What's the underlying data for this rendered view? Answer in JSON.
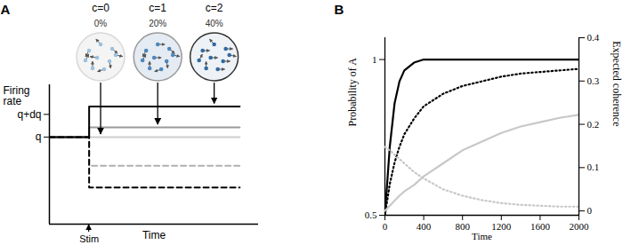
{
  "chart_data": [
    {
      "panel": "A",
      "type": "line",
      "y_label": "Firing rate",
      "x_label": "Time",
      "xlim": [
        0,
        10
      ],
      "xticks": [],
      "ylim": [
        0,
        1.6
      ],
      "yticks": [
        {
          "value": 1,
          "label": "q"
        },
        {
          "value": 1.26,
          "label": "q+dq"
        }
      ],
      "tick_labels": "y",
      "annotations": [
        {
          "text": "Stim",
          "x": 1.9
        }
      ],
      "stimuli": [
        {
          "label": "c=0",
          "coherence_label": "0%"
        },
        {
          "label": "c=1",
          "coherence_label": "20%"
        },
        {
          "label": "c=2",
          "coherence_label": "40%"
        }
      ],
      "x": [
        0,
        1.9,
        1.9,
        9.1
      ],
      "series": [
        {
          "color": "#cfcfcf",
          "line_style": "solid",
          "values": [
            1,
            1,
            1,
            1
          ]
        },
        {
          "color": "#9a9a9a",
          "line_style": "solid",
          "values": [
            1,
            1,
            1.11,
            1.11
          ]
        },
        {
          "color": "#b0b0b0",
          "line_style": "dashed",
          "values": [
            1,
            1,
            0.67,
            0.67
          ]
        },
        {
          "color": "#000000",
          "line_style": "dashed",
          "values": [
            1,
            1,
            0.42,
            0.42
          ]
        },
        {
          "color": "#000000",
          "line_style": "solid",
          "values": [
            1,
            1,
            1.35,
            1.35
          ]
        }
      ]
    },
    {
      "panel": "B",
      "type": "line",
      "x_label": "Time",
      "y_label": "Probability of A",
      "y2_label": "Expected coherence",
      "xlim": [
        0,
        2000
      ],
      "xticks": [
        0,
        400,
        800,
        1200,
        1600,
        2000
      ],
      "ylim": [
        0.5,
        1.07
      ],
      "yticks": [
        0.5,
        1
      ],
      "y2lim": [
        -0.01,
        0.4
      ],
      "y2ticks": [
        0,
        0.1,
        0.2,
        0.3,
        0.4
      ],
      "x": [
        0,
        50,
        100,
        150,
        200,
        300,
        400,
        600,
        800,
        1000,
        1200,
        1400,
        1600,
        1800,
        2000
      ],
      "series": [
        {
          "color": "#000000",
          "line_style": "solid",
          "values": [
            0.5,
            0.72,
            0.86,
            0.93,
            0.965,
            0.99,
            1,
            1,
            1,
            1,
            1,
            1,
            1,
            1,
            1
          ]
        },
        {
          "color": "#000000",
          "line_style": "dotted",
          "values": [
            0.5,
            0.6,
            0.67,
            0.72,
            0.76,
            0.81,
            0.85,
            0.89,
            0.915,
            0.93,
            0.945,
            0.955,
            0.96,
            0.965,
            0.97
          ]
        },
        {
          "color": "#c8c8c8",
          "line_style": "solid",
          "axis": "y2",
          "values": [
            0,
            0.012,
            0.024,
            0.035,
            0.045,
            0.06,
            0.08,
            0.11,
            0.14,
            0.16,
            0.18,
            0.195,
            0.205,
            0.215,
            0.222
          ]
        },
        {
          "color": "#c8c8c8",
          "line_style": "dotted",
          "axis": "y2",
          "values": [
            0.148,
            0.14,
            0.13,
            0.12,
            0.11,
            0.09,
            0.075,
            0.05,
            0.035,
            0.025,
            0.018,
            0.014,
            0.012,
            0.01,
            0.01
          ]
        }
      ]
    }
  ]
}
